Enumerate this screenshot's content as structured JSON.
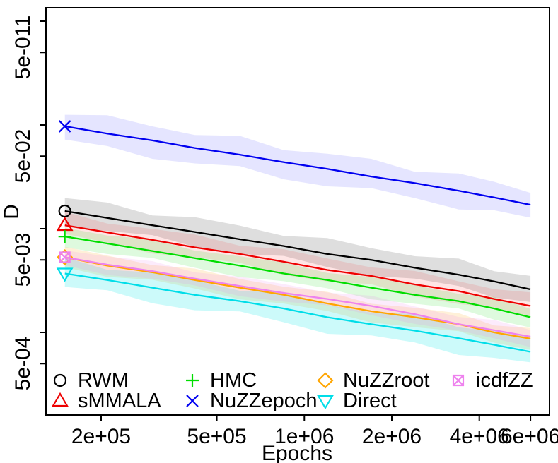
{
  "figure": {
    "xlabel": "Epochs",
    "ylabel": "D",
    "background_color": "#ffffff",
    "axis_color": "#000000",
    "x_ticks": [
      {
        "v": 200000,
        "label": "2e+05"
      },
      {
        "v": 500000,
        "label": "5e+05"
      },
      {
        "v": 1000000,
        "label": "1e+06"
      },
      {
        "v": 2000000,
        "label": "2e+06"
      },
      {
        "v": 4000000,
        "label": "4e+06"
      },
      {
        "v": 6000000,
        "label": "6e+06"
      }
    ],
    "y_ticks": [
      {
        "v": 1,
        "label": "1"
      },
      {
        "v": 0.5,
        "label": "5e-01"
      },
      {
        "v": 0.1,
        "label": ""
      },
      {
        "v": 0.05,
        "label": "5e-02"
      },
      {
        "v": 0.01,
        "label": ""
      },
      {
        "v": 0.005,
        "label": "5e-03"
      },
      {
        "v": 0.001,
        "label": ""
      },
      {
        "v": 0.0005,
        "label": "5e-04"
      }
    ]
  },
  "chart_data": {
    "type": "line",
    "title": "",
    "xlabel": "Epochs",
    "ylabel": "D",
    "x_scale": "log",
    "y_scale": "log",
    "x_range": [
      130000,
      7000000
    ],
    "y_range": [
      0.00017,
      1.35
    ],
    "grid": false,
    "legend_position": "bottom-left",
    "x": [
      150000,
      210000,
      300000,
      420000,
      600000,
      850000,
      1200000,
      1700000,
      2400000,
      3400000,
      4500000,
      6000000
    ],
    "series": [
      {
        "name": "RWM",
        "color": "#000000",
        "band_color": "rgba(0,0,0,0.13)",
        "marker": "circle",
        "band_dex": 0.125,
        "values": [
          0.0148,
          0.0127,
          0.0108,
          0.0093,
          0.0079,
          0.0068,
          0.0057,
          0.005,
          0.0042,
          0.0036,
          0.0031,
          0.0026
        ]
      },
      {
        "name": "sMMALA",
        "color": "#EE0000",
        "band_color": "rgba(255,0,0,0.10)",
        "marker": "triangle-up",
        "band_dex": 0.105,
        "values": [
          0.0108,
          0.0092,
          0.0078,
          0.0066,
          0.0057,
          0.0048,
          0.004,
          0.0035,
          0.0029,
          0.0025,
          0.0021,
          0.0018
        ]
      },
      {
        "name": "HMC",
        "color": "#00DD00",
        "band_color": "rgba(0,220,0,0.13)",
        "marker": "plus",
        "band_dex": 0.09,
        "values": [
          0.0084,
          0.0072,
          0.0061,
          0.0052,
          0.0044,
          0.0037,
          0.0032,
          0.0027,
          0.0023,
          0.002,
          0.0017,
          0.0014
        ]
      },
      {
        "name": "NuZZepoch",
        "color": "#0000F0",
        "band_color": "rgba(70,70,255,0.14)",
        "marker": "x",
        "band_dex": 0.145,
        "values": [
          0.097,
          0.0825,
          0.071,
          0.06,
          0.0517,
          0.0437,
          0.0377,
          0.0318,
          0.0275,
          0.0232,
          0.02,
          0.017
        ]
      },
      {
        "name": "NuZZroot",
        "color": "#FFA500",
        "band_color": "rgba(255,180,60,0.20)",
        "marker": "diamond",
        "band_dex": 0.09,
        "values": [
          0.0053,
          0.0044,
          0.0038,
          0.0032,
          0.0027,
          0.0023,
          0.0019,
          0.0016,
          0.0014,
          0.0012,
          0.001,
          0.00087
        ]
      },
      {
        "name": "Direct",
        "color": "#00DDE8",
        "band_color": "rgba(0,230,230,0.20)",
        "marker": "triangle-down",
        "band_dex": 0.13,
        "values": [
          0.0037,
          0.0032,
          0.0027,
          0.0023,
          0.002,
          0.0017,
          0.0014,
          0.0012,
          0.00104,
          0.00088,
          0.00076,
          0.00065
        ]
      },
      {
        "name": "icdfZZ",
        "color": "#EE82EE",
        "band_color": "rgba(238,130,238,0.16)",
        "marker": "square-x",
        "band_dex": 0.08,
        "values": [
          0.0053,
          0.0045,
          0.0039,
          0.0033,
          0.0028,
          0.0024,
          0.0021,
          0.0018,
          0.0015,
          0.0012,
          0.00105,
          0.00091
        ]
      }
    ]
  },
  "legend": {
    "items": [
      {
        "label": "RWM",
        "marker": "circle",
        "color": "#000000"
      },
      {
        "label": "sMMALA",
        "marker": "triangle-up",
        "color": "#EE0000"
      },
      {
        "label": "HMC",
        "marker": "plus",
        "color": "#00DD00"
      },
      {
        "label": "NuZZepoch",
        "marker": "x",
        "color": "#0000F0"
      },
      {
        "label": "NuZZroot",
        "marker": "diamond",
        "color": "#FFA500"
      },
      {
        "label": "Direct",
        "marker": "triangle-down",
        "color": "#00DDE8"
      },
      {
        "label": "icdfZZ",
        "marker": "square-x",
        "color": "#EE82EE"
      }
    ]
  }
}
